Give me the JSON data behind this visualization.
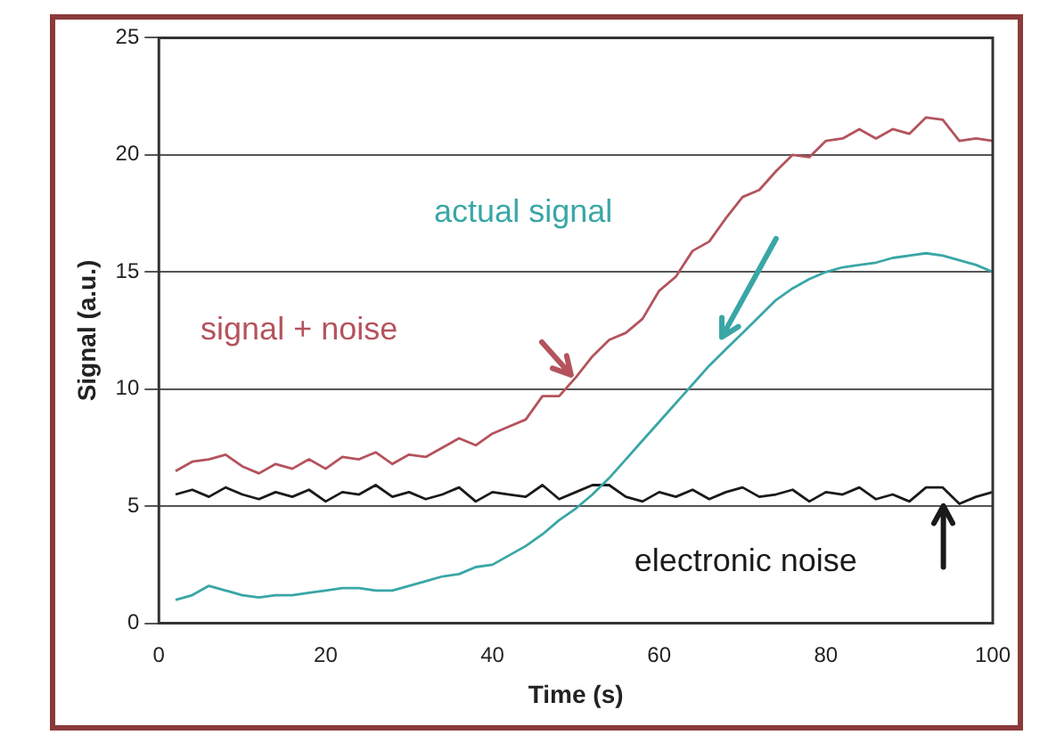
{
  "chart_data": {
    "type": "line",
    "xlabel": "Time (s)",
    "ylabel": "Signal (a.u.)",
    "x": [
      2,
      4,
      6,
      8,
      10,
      12,
      14,
      16,
      18,
      20,
      22,
      24,
      26,
      28,
      30,
      32,
      34,
      36,
      38,
      40,
      42,
      44,
      46,
      48,
      50,
      52,
      54,
      56,
      58,
      60,
      62,
      64,
      66,
      68,
      70,
      72,
      74,
      76,
      78,
      80,
      82,
      84,
      86,
      88,
      90,
      92,
      94,
      96,
      98,
      100
    ],
    "series": [
      {
        "name": "signal + noise",
        "color": "#b4535d",
        "values": [
          6.5,
          6.9,
          7.0,
          7.2,
          6.7,
          6.4,
          6.8,
          6.6,
          7.0,
          6.6,
          7.1,
          7.0,
          7.3,
          6.8,
          7.2,
          7.1,
          7.5,
          7.9,
          7.6,
          8.1,
          8.4,
          8.7,
          9.7,
          9.7,
          10.5,
          11.4,
          12.1,
          12.4,
          13.0,
          14.2,
          14.8,
          15.9,
          16.3,
          17.3,
          18.2,
          18.5,
          19.3,
          20.0,
          19.9,
          20.6,
          20.7,
          21.1,
          20.7,
          21.1,
          20.9,
          21.6,
          21.5,
          20.6,
          20.7,
          20.6
        ]
      },
      {
        "name": "actual signal",
        "color": "#3aa6a6",
        "values": [
          1.0,
          1.2,
          1.6,
          1.4,
          1.2,
          1.1,
          1.2,
          1.2,
          1.3,
          1.4,
          1.5,
          1.5,
          1.4,
          1.4,
          1.6,
          1.8,
          2.0,
          2.1,
          2.4,
          2.5,
          2.9,
          3.3,
          3.8,
          4.4,
          4.9,
          5.5,
          6.2,
          7.0,
          7.8,
          8.6,
          9.4,
          10.2,
          11.0,
          11.7,
          12.4,
          13.1,
          13.8,
          14.3,
          14.7,
          15.0,
          15.2,
          15.3,
          15.4,
          15.6,
          15.7,
          15.8,
          15.7,
          15.5,
          15.3,
          15.0
        ]
      },
      {
        "name": "electronic noise",
        "color": "#1a1a1a",
        "values": [
          5.5,
          5.7,
          5.4,
          5.8,
          5.5,
          5.3,
          5.6,
          5.4,
          5.7,
          5.2,
          5.6,
          5.5,
          5.9,
          5.4,
          5.6,
          5.3,
          5.5,
          5.8,
          5.2,
          5.6,
          5.5,
          5.4,
          5.9,
          5.3,
          5.6,
          5.9,
          5.9,
          5.4,
          5.2,
          5.6,
          5.4,
          5.7,
          5.3,
          5.6,
          5.8,
          5.4,
          5.5,
          5.7,
          5.2,
          5.6,
          5.5,
          5.8,
          5.3,
          5.5,
          5.2,
          5.8,
          5.8,
          5.1,
          5.4,
          5.6
        ]
      }
    ],
    "xlim": [
      0,
      100
    ],
    "xticks": [
      0,
      20,
      40,
      60,
      80,
      100
    ],
    "ylim": [
      0,
      25
    ],
    "yticks": [
      0,
      5,
      10,
      15,
      20,
      25
    ],
    "grid": "y",
    "legend": false,
    "marker": "none",
    "line_style": "solid"
  }
}
